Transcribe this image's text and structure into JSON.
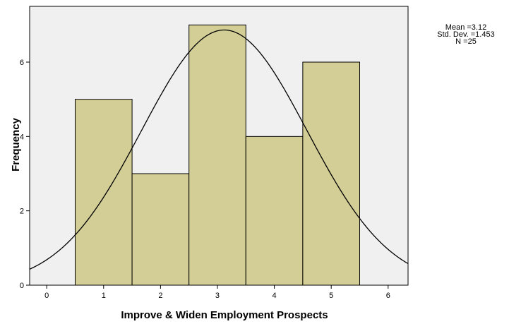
{
  "chart_data": {
    "type": "bar",
    "subtype": "histogram",
    "xlabel": "Improve & Widen Employment Prospects",
    "ylabel": "Frequency",
    "xlim": [
      -0.3,
      6.35
    ],
    "ylim": [
      0,
      7.5
    ],
    "x_ticks": [
      "0",
      "1",
      "2",
      "3",
      "4",
      "5",
      "6"
    ],
    "y_ticks": [
      "0",
      "2",
      "4",
      "6"
    ],
    "bins": [
      {
        "center": 1,
        "value": 5
      },
      {
        "center": 2,
        "value": 3
      },
      {
        "center": 3,
        "value": 7
      },
      {
        "center": 4,
        "value": 4
      },
      {
        "center": 5,
        "value": 6
      }
    ],
    "bin_width": 1,
    "normal_curve": {
      "mean": 3.12,
      "sd": 1.453,
      "n": 25
    },
    "stats": [
      "Mean =3.12",
      "Std. Dev. =1.453",
      "N =25"
    ],
    "colors": {
      "bar_fill": "#d3cd96",
      "plot_background": "#f0f0f0",
      "curve": "#000000"
    },
    "grid": false
  }
}
